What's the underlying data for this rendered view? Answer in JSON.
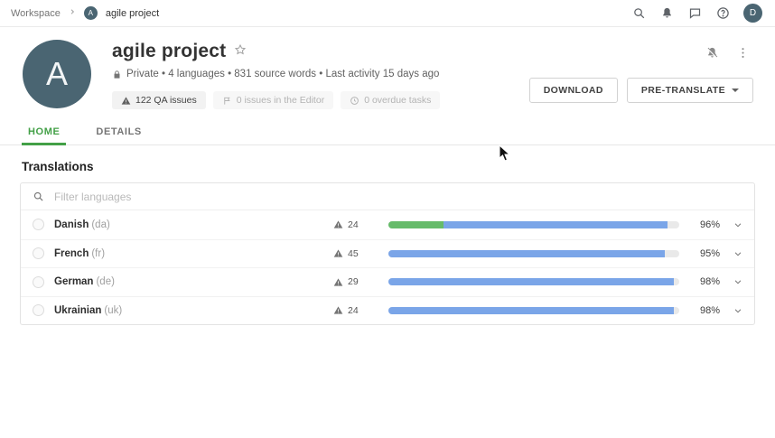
{
  "topbar": {
    "breadcrumb": {
      "workspace": "Workspace",
      "project": "agile project",
      "avatar_letter": "A"
    },
    "user_avatar_letter": "D"
  },
  "header": {
    "avatar_letter": "A",
    "title": "agile project",
    "meta": "Private • 4 languages • 831 source words • Last activity 15 days ago",
    "badges": [
      {
        "label": "122 QA issues",
        "muted": false
      },
      {
        "label": "0 issues in the Editor",
        "muted": true
      },
      {
        "label": "0 overdue tasks",
        "muted": true
      }
    ],
    "buttons": {
      "download": "DOWNLOAD",
      "pretranslate": "PRE-TRANSLATE"
    }
  },
  "tabs": [
    {
      "label": "HOME",
      "active": true
    },
    {
      "label": "DETAILS",
      "active": false
    }
  ],
  "translations": {
    "heading": "Translations",
    "filter_placeholder": "Filter languages",
    "rows": [
      {
        "name": "Danish",
        "code": "(da)",
        "issues": "24",
        "percent": "96%",
        "segments": [
          {
            "color": "green",
            "pct": 19
          },
          {
            "color": "blue",
            "pct": 77
          }
        ]
      },
      {
        "name": "French",
        "code": "(fr)",
        "issues": "45",
        "percent": "95%",
        "segments": [
          {
            "color": "blue",
            "pct": 95
          }
        ]
      },
      {
        "name": "German",
        "code": "(de)",
        "issues": "29",
        "percent": "98%",
        "segments": [
          {
            "color": "blue",
            "pct": 98
          }
        ]
      },
      {
        "name": "Ukrainian",
        "code": "(uk)",
        "issues": "24",
        "percent": "98%",
        "segments": [
          {
            "color": "blue",
            "pct": 98
          }
        ]
      }
    ]
  },
  "colors": {
    "accent_green": "#43a047",
    "bar_green": "#66bb6a",
    "bar_blue": "#7aa5e8",
    "avatar_bg": "#4a6572"
  }
}
